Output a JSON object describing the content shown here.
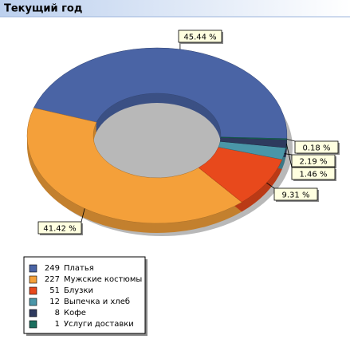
{
  "chart_data": {
    "type": "donut",
    "title": "Текущий год",
    "categories": [
      "Платья",
      "Мужские костюмы",
      "Блузки",
      "Выпечка и хлеб",
      "Кофе",
      "Услуги доставки"
    ],
    "counts": [
      249,
      227,
      51,
      12,
      8,
      1
    ],
    "values": [
      45.44,
      41.42,
      9.31,
      2.19,
      1.46,
      0.18
    ],
    "value_labels": [
      "45.44 %",
      "41.42 %",
      "9.31 %",
      "2.19 %",
      "1.46 %",
      "0.18 %"
    ],
    "colors": [
      "#4a64a5",
      "#f4a03a",
      "#e8491c",
      "#4a96a8",
      "#2e3a5e",
      "#1a6e5e"
    ]
  }
}
